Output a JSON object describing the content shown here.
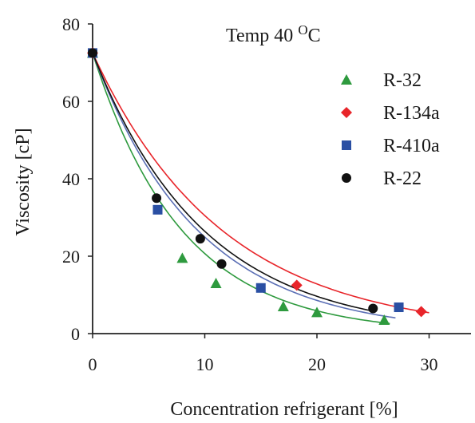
{
  "chart_data": {
    "type": "scatter",
    "annotation": {
      "text": "Temp 40 ",
      "sup": "O",
      "unit": "C"
    },
    "xlabel": "Concentration refrigerant [%]",
    "ylabel": "Viscosity [cP]",
    "xlim": [
      0,
      35
    ],
    "ylim": [
      0,
      80
    ],
    "xticks": [
      "0",
      "10",
      "20",
      "30"
    ],
    "yticks": [
      "0",
      "20",
      "40",
      "60",
      "80"
    ],
    "legend_position": "top-right",
    "grid": false,
    "series": [
      {
        "name": "R-32",
        "marker": "triangle",
        "color": "#2e9a3e",
        "points": [
          [
            0,
            72.5
          ],
          [
            8,
            19.5
          ],
          [
            11,
            13
          ],
          [
            17,
            7
          ],
          [
            20,
            5.5
          ],
          [
            26,
            3.5
          ]
        ],
        "fit_k": 0.1255,
        "fit_xmax": 26.5
      },
      {
        "name": "R-134a",
        "marker": "diamond",
        "color": "#e8252a",
        "points": [
          [
            0,
            72.5
          ],
          [
            18.2,
            12.5
          ],
          [
            29.3,
            5.7
          ]
        ],
        "fit_k": 0.0866,
        "fit_xmax": 30
      },
      {
        "name": "R-410a",
        "marker": "square",
        "color": "#2a4fa3",
        "points": [
          [
            0,
            72.5
          ],
          [
            5.8,
            32
          ],
          [
            15,
            11.8
          ],
          [
            27.3,
            6.8
          ]
        ],
        "fit_k": 0.1067,
        "fit_xmax": 27
      },
      {
        "name": "R-22",
        "marker": "circle",
        "color": "#111111",
        "points": [
          [
            0,
            72.5
          ],
          [
            5.7,
            35
          ],
          [
            9.6,
            24.5
          ],
          [
            11.5,
            18
          ],
          [
            25,
            6.5
          ]
        ],
        "fit_k": 0.1009,
        "fit_xmax": 25
      }
    ],
    "fit_curves": [
      {
        "series": "R-32",
        "color": "#2e9a3e"
      },
      {
        "series": "R-134a",
        "color": "#e8252a"
      },
      {
        "series": "R-410a",
        "color": "#5b6fb5"
      },
      {
        "series": "R-22",
        "color": "#111111"
      }
    ]
  }
}
